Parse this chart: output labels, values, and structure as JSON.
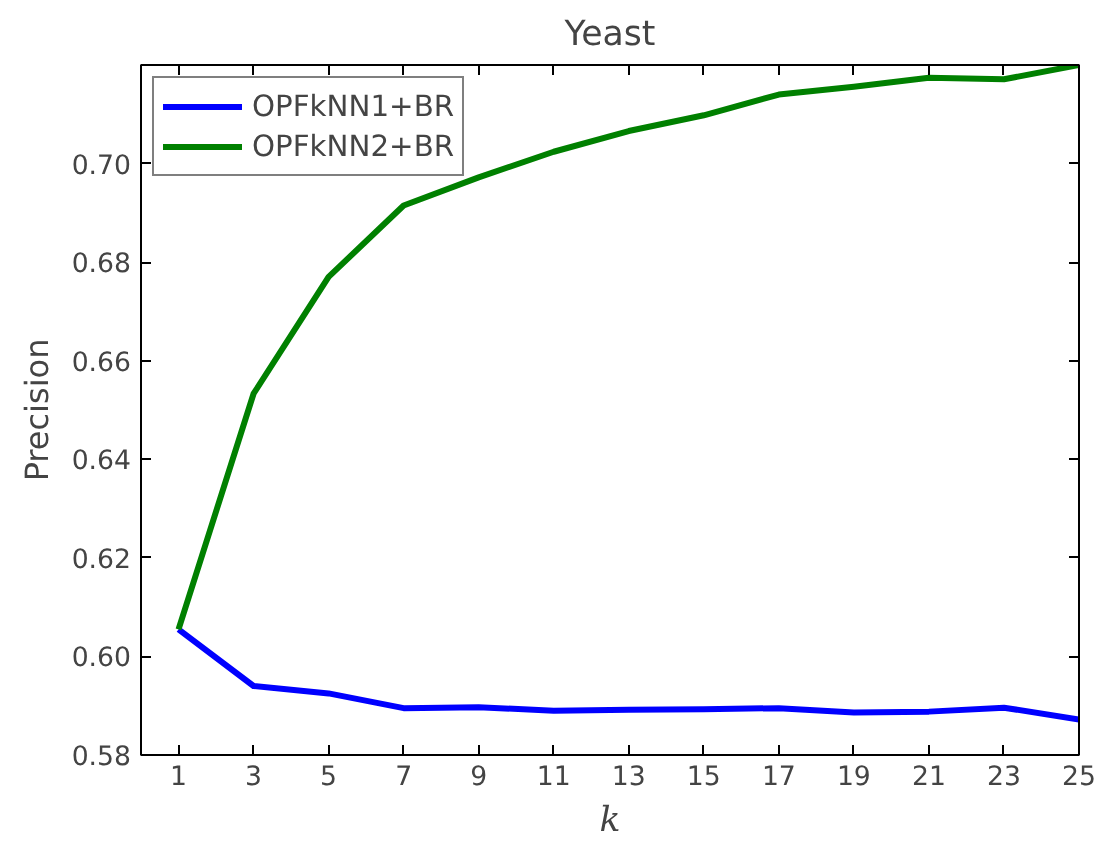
{
  "chart_data": {
    "type": "line",
    "title": "Yeast",
    "xlabel": "k",
    "ylabel": "Precision",
    "x": [
      1,
      3,
      5,
      7,
      9,
      11,
      13,
      15,
      17,
      19,
      21,
      23,
      25
    ],
    "series": [
      {
        "name": "OPFkNN1+BR",
        "color": "#0000ff",
        "values": [
          0.6055,
          0.594,
          0.5925,
          0.5895,
          0.5897,
          0.589,
          0.5892,
          0.5893,
          0.5895,
          0.5886,
          0.5888,
          0.5896,
          0.5872
        ]
      },
      {
        "name": "OPFkNN2+BR",
        "color": "#008000",
        "values": [
          0.6055,
          0.6533,
          0.677,
          0.6915,
          0.6972,
          0.7024,
          0.7066,
          0.7098,
          0.714,
          0.7156,
          0.7174,
          0.7171,
          0.72
        ]
      }
    ],
    "xlim": [
      0,
      25
    ],
    "xticks": [
      1,
      3,
      5,
      7,
      9,
      11,
      13,
      15,
      17,
      19,
      21,
      23,
      25
    ],
    "ylim": [
      0.58,
      0.72
    ],
    "yticks": [
      {
        "value": 0.58,
        "label": "0.58"
      },
      {
        "value": 0.6,
        "label": "0.60"
      },
      {
        "value": 0.62,
        "label": "0.62"
      },
      {
        "value": 0.64,
        "label": "0.64"
      },
      {
        "value": 0.66,
        "label": "0.66"
      },
      {
        "value": 0.68,
        "label": "0.68"
      },
      {
        "value": 0.7,
        "label": "0.70"
      }
    ],
    "grid": false,
    "legend": "top left",
    "marker": "none",
    "line_style": "solid"
  }
}
